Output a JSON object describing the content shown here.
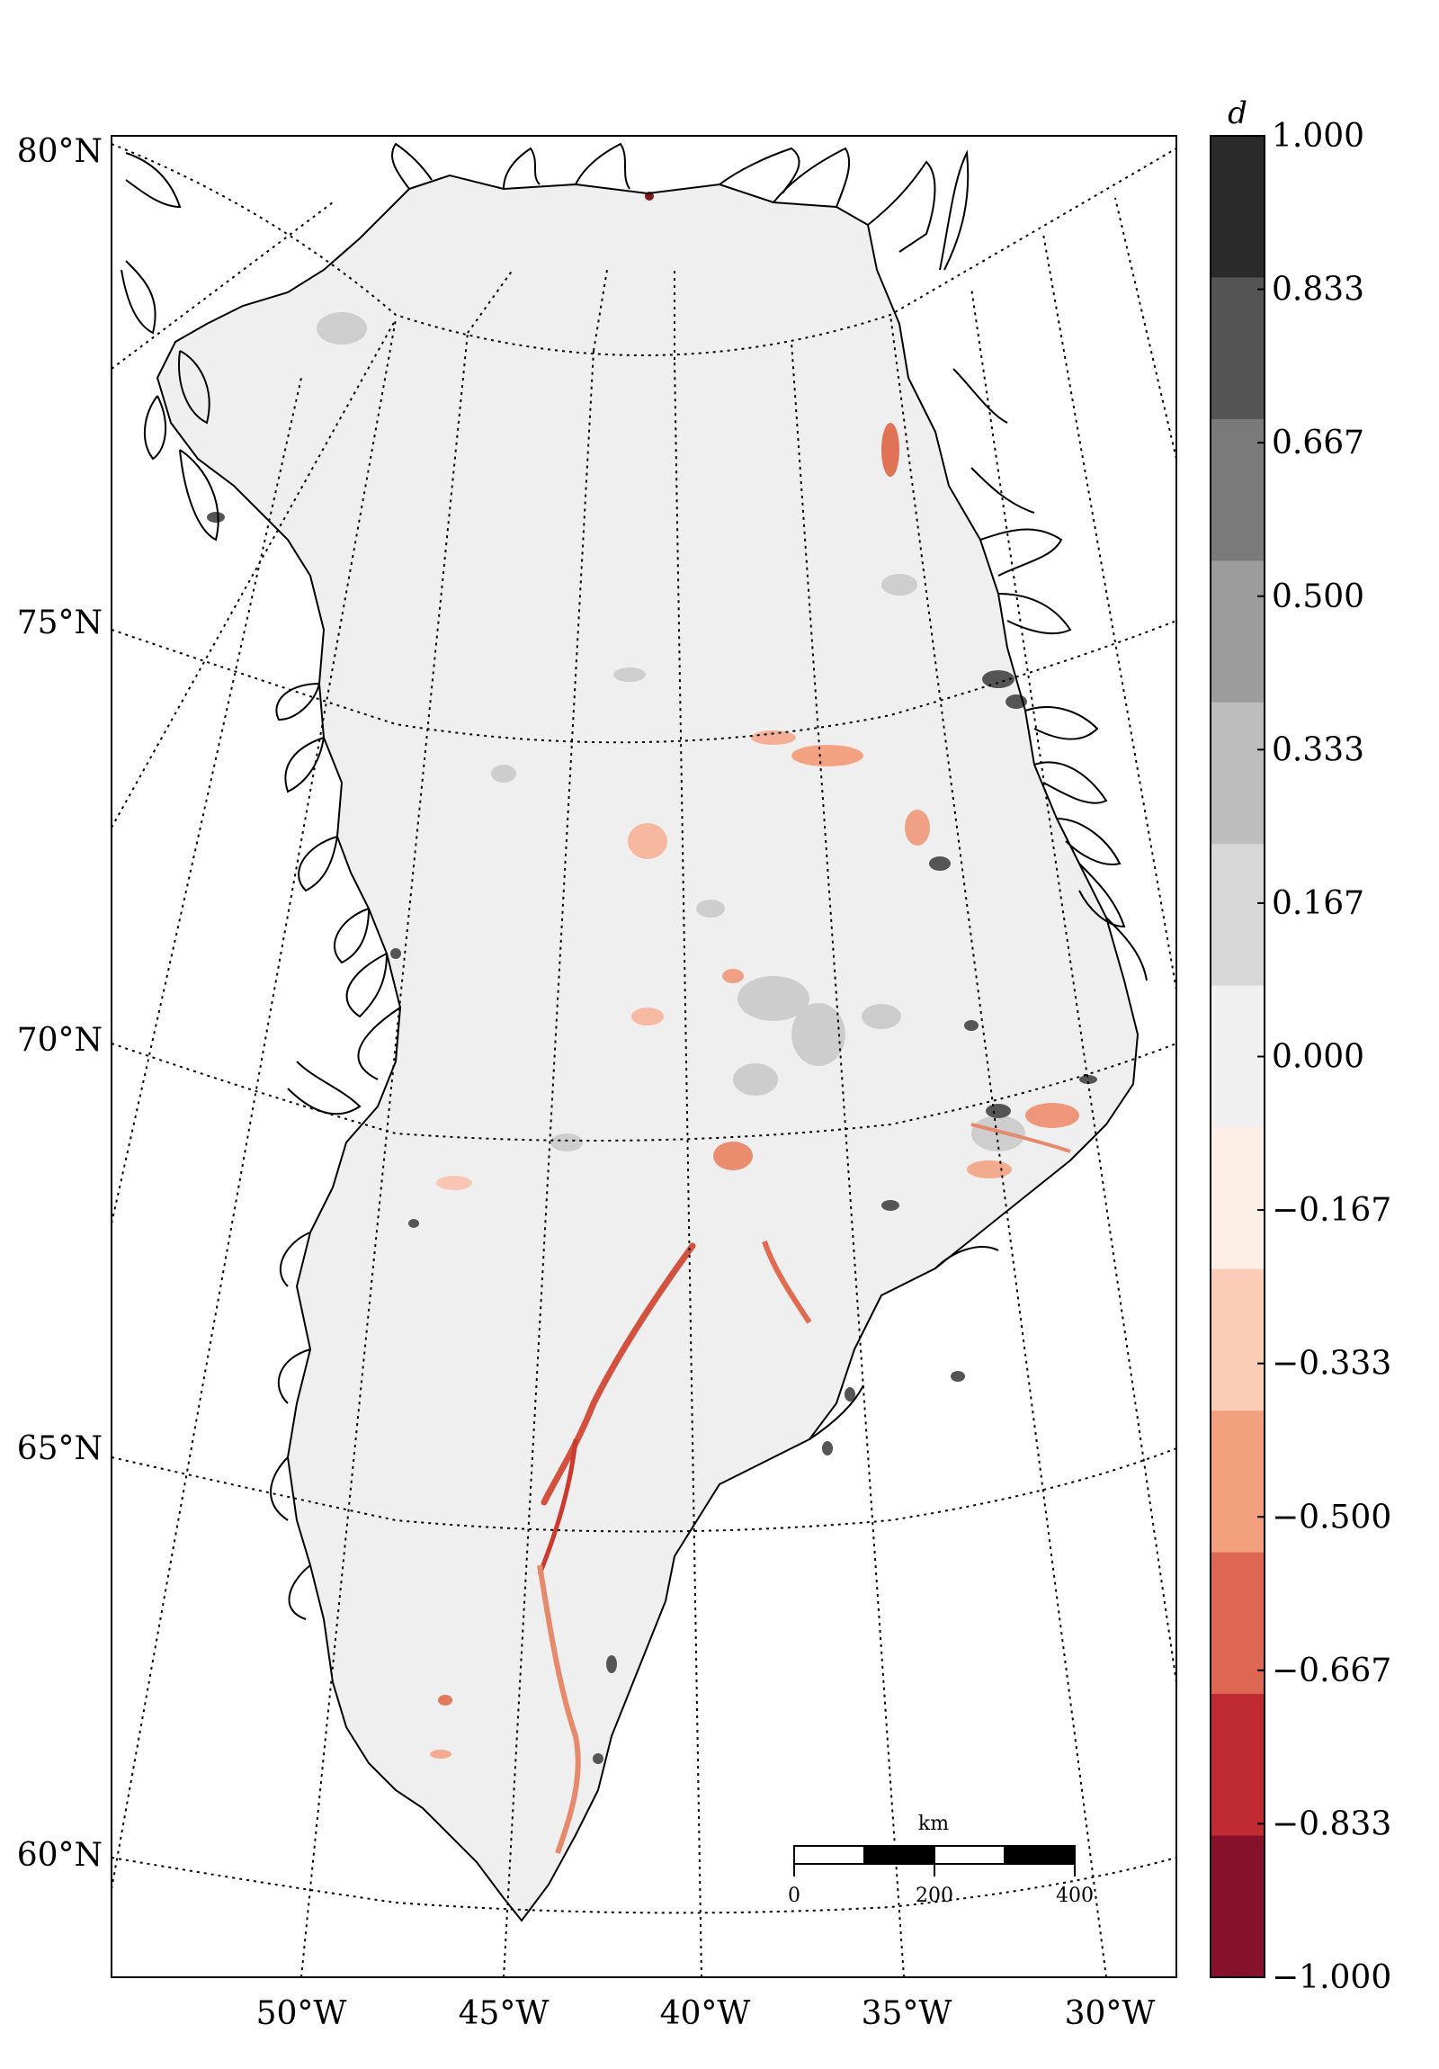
{
  "map": {
    "lat_labels": [
      "80°N",
      "75°N",
      "70°N",
      "65°N",
      "60°N"
    ],
    "lon_labels": [
      "50°W",
      "45°W",
      "40°W",
      "35°W",
      "30°W"
    ],
    "scalebar": {
      "unit": "km",
      "ticks": [
        "0",
        "200",
        "400"
      ]
    }
  },
  "colorbar": {
    "title": "d",
    "tick_labels": [
      "1.000",
      "0.833",
      "0.667",
      "0.500",
      "0.333",
      "0.167",
      "0.000",
      "−0.167",
      "−0.333",
      "−0.500",
      "−0.667",
      "−0.833",
      "−1.000"
    ],
    "colors": [
      "#2b2b2b",
      "#555555",
      "#7a7a7a",
      "#9c9c9c",
      "#bdbdbd",
      "#d8d8d8",
      "#f0f0f0",
      "#fdeee6",
      "#fbcdb6",
      "#f3a07f",
      "#dd6753",
      "#bf2a33",
      "#86112a"
    ]
  },
  "colors": {
    "ice": "#efefef",
    "ice_gray": "#c8c8c8",
    "ice_dark": "#606060",
    "anomaly_light": "#f9cfbd",
    "anomaly_mid": "#ec8a68",
    "anomaly_strong": "#cc3a2d",
    "coast": "#000000"
  }
}
